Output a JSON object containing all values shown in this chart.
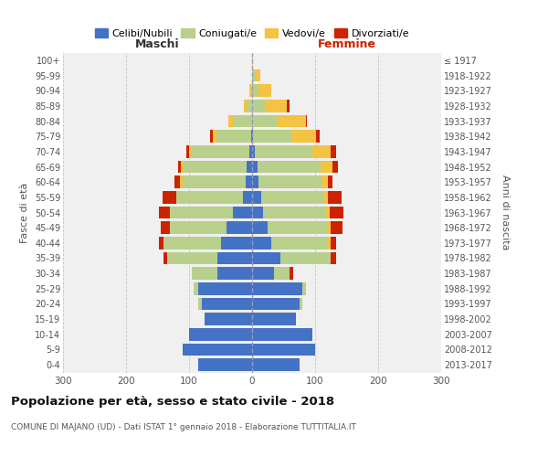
{
  "age_groups_bottom_to_top": [
    "0-4",
    "5-9",
    "10-14",
    "15-19",
    "20-24",
    "25-29",
    "30-34",
    "35-39",
    "40-44",
    "45-49",
    "50-54",
    "55-59",
    "60-64",
    "65-69",
    "70-74",
    "75-79",
    "80-84",
    "85-89",
    "90-94",
    "95-99",
    "100+"
  ],
  "birth_years_bottom_to_top": [
    "2013-2017",
    "2008-2012",
    "2003-2007",
    "1998-2002",
    "1993-1997",
    "1988-1992",
    "1983-1987",
    "1978-1982",
    "1973-1977",
    "1968-1972",
    "1963-1967",
    "1958-1962",
    "1953-1957",
    "1948-1952",
    "1943-1947",
    "1938-1942",
    "1933-1937",
    "1928-1932",
    "1923-1927",
    "1918-1922",
    "≤ 1917"
  ],
  "colors": {
    "celibi": "#4472c4",
    "coniugati": "#b8d08c",
    "vedovi": "#f5c342",
    "divorziati": "#cc2200"
  },
  "males": {
    "celibi": [
      85,
      110,
      100,
      75,
      80,
      85,
      55,
      55,
      50,
      40,
      30,
      15,
      10,
      8,
      5,
      2,
      0,
      0,
      0,
      0,
      0
    ],
    "coniugati": [
      0,
      0,
      0,
      0,
      5,
      8,
      40,
      80,
      90,
      90,
      100,
      105,
      100,
      100,
      90,
      55,
      30,
      8,
      2,
      0,
      0
    ],
    "vedovi": [
      0,
      0,
      0,
      0,
      0,
      0,
      0,
      0,
      0,
      0,
      0,
      0,
      5,
      5,
      5,
      5,
      8,
      5,
      2,
      0,
      0
    ],
    "divorziati": [
      0,
      0,
      0,
      0,
      0,
      0,
      0,
      5,
      8,
      15,
      18,
      22,
      8,
      5,
      5,
      5,
      0,
      0,
      0,
      0,
      0
    ]
  },
  "females": {
    "nubili": [
      75,
      100,
      95,
      70,
      75,
      80,
      35,
      45,
      30,
      25,
      18,
      15,
      10,
      8,
      5,
      2,
      0,
      0,
      0,
      0,
      0
    ],
    "coniugati": [
      0,
      0,
      0,
      0,
      5,
      5,
      25,
      80,
      90,
      95,
      100,
      100,
      100,
      100,
      90,
      60,
      40,
      20,
      10,
      5,
      0
    ],
    "vedovi": [
      0,
      0,
      0,
      0,
      0,
      0,
      0,
      0,
      5,
      5,
      5,
      5,
      10,
      20,
      30,
      40,
      45,
      35,
      20,
      8,
      2
    ],
    "divorziati": [
      0,
      0,
      0,
      0,
      0,
      0,
      5,
      8,
      8,
      18,
      22,
      22,
      8,
      8,
      8,
      5,
      2,
      5,
      0,
      0,
      0
    ]
  },
  "title": "Popolazione per età, sesso e stato civile - 2018",
  "subtitle": "COMUNE DI MAJANO (UD) - Dati ISTAT 1° gennaio 2018 - Elaborazione TUTTITALIA.IT",
  "xlabel_left": "Maschi",
  "xlabel_right": "Femmine",
  "ylabel_left": "Fasce di età",
  "ylabel_right": "Anni di nascita",
  "legend_labels": [
    "Celibi/Nubili",
    "Coniugati/e",
    "Vedovi/e",
    "Divorziati/e"
  ],
  "xlim": 300,
  "bg_color": "#f0f0f0",
  "grid_color": "#bbbbbb"
}
